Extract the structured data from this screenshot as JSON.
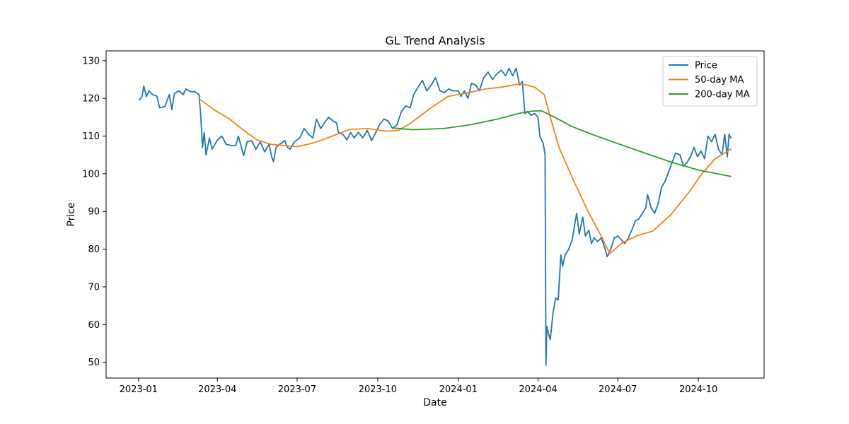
{
  "chart_data": {
    "type": "line",
    "title": "GL Trend Analysis",
    "xlabel": "Date",
    "ylabel": "Price",
    "xlim": [
      "2022-11-25",
      "2024-12-15"
    ],
    "ylim": [
      45.8,
      132.6
    ],
    "x_ticks": [
      "2023-01-01",
      "2023-04-01",
      "2023-07-01",
      "2023-10-01",
      "2024-01-01",
      "2024-04-01",
      "2024-07-01",
      "2024-10-01"
    ],
    "x_tick_labels": [
      "2023-01",
      "2023-04",
      "2023-07",
      "2023-10",
      "2024-01",
      "2024-04",
      "2024-07",
      "2024-10"
    ],
    "y_ticks": [
      50,
      60,
      70,
      80,
      90,
      100,
      110,
      120,
      130
    ],
    "grid": false,
    "legend": "top-right",
    "series": [
      {
        "name": "Price",
        "color": "#1f77b4",
        "points": [
          [
            "2023-01-02",
            119.6
          ],
          [
            "2023-01-05",
            120.5
          ],
          [
            "2023-01-07",
            123.3
          ],
          [
            "2023-01-10",
            120.5
          ],
          [
            "2023-01-13",
            122.0
          ],
          [
            "2023-01-17",
            121.0
          ],
          [
            "2023-01-22",
            120.6
          ],
          [
            "2023-01-25",
            117.5
          ],
          [
            "2023-01-31",
            117.8
          ],
          [
            "2023-02-05",
            121.0
          ],
          [
            "2023-02-08",
            117.0
          ],
          [
            "2023-02-11",
            121.3
          ],
          [
            "2023-02-16",
            122.0
          ],
          [
            "2023-02-21",
            121.0
          ],
          [
            "2023-02-24",
            122.5
          ],
          [
            "2023-03-01",
            121.8
          ],
          [
            "2023-03-06",
            121.8
          ],
          [
            "2023-03-11",
            121.0
          ],
          [
            "2023-03-13",
            115.5
          ],
          [
            "2023-03-15",
            107.0
          ],
          [
            "2023-03-17",
            111.0
          ],
          [
            "2023-03-19",
            105.0
          ],
          [
            "2023-03-23",
            109.5
          ],
          [
            "2023-03-26",
            106.5
          ],
          [
            "2023-04-01",
            109.0
          ],
          [
            "2023-04-06",
            110.0
          ],
          [
            "2023-04-11",
            107.8
          ],
          [
            "2023-04-17",
            107.5
          ],
          [
            "2023-04-22",
            107.5
          ],
          [
            "2023-04-25",
            110.0
          ],
          [
            "2023-04-29",
            106.5
          ],
          [
            "2023-05-01",
            104.8
          ],
          [
            "2023-05-05",
            108.5
          ],
          [
            "2023-05-10",
            108.8
          ],
          [
            "2023-05-15",
            106.5
          ],
          [
            "2023-05-20",
            108.5
          ],
          [
            "2023-05-25",
            105.8
          ],
          [
            "2023-05-30",
            107.8
          ],
          [
            "2023-06-02",
            104.5
          ],
          [
            "2023-06-04",
            103.2
          ],
          [
            "2023-06-07",
            107.0
          ],
          [
            "2023-06-12",
            108.0
          ],
          [
            "2023-06-17",
            108.8
          ],
          [
            "2023-06-20",
            107.0
          ],
          [
            "2023-06-23",
            106.5
          ],
          [
            "2023-06-28",
            108.5
          ],
          [
            "2023-07-04",
            109.5
          ],
          [
            "2023-07-09",
            112.0
          ],
          [
            "2023-07-14",
            110.5
          ],
          [
            "2023-07-19",
            109.5
          ],
          [
            "2023-07-23",
            114.5
          ],
          [
            "2023-07-28",
            112.0
          ],
          [
            "2023-08-01",
            113.5
          ],
          [
            "2023-08-06",
            115.0
          ],
          [
            "2023-08-11",
            114.0
          ],
          [
            "2023-08-15",
            113.5
          ],
          [
            "2023-08-17",
            111.0
          ],
          [
            "2023-08-22",
            110.5
          ],
          [
            "2023-08-27",
            109.0
          ],
          [
            "2023-08-31",
            111.0
          ],
          [
            "2023-09-04",
            109.5
          ],
          [
            "2023-09-09",
            111.0
          ],
          [
            "2023-09-14",
            109.5
          ],
          [
            "2023-09-19",
            111.5
          ],
          [
            "2023-09-24",
            108.8
          ],
          [
            "2023-09-29",
            111.0
          ],
          [
            "2023-10-03",
            113.0
          ],
          [
            "2023-10-08",
            114.5
          ],
          [
            "2023-10-13",
            114.0
          ],
          [
            "2023-10-18",
            112.0
          ],
          [
            "2023-10-23",
            113.0
          ],
          [
            "2023-10-28",
            116.5
          ],
          [
            "2023-11-02",
            118.0
          ],
          [
            "2023-11-07",
            117.5
          ],
          [
            "2023-11-11",
            121.0
          ],
          [
            "2023-11-16",
            123.0
          ],
          [
            "2023-11-21",
            124.8
          ],
          [
            "2023-11-26",
            122.0
          ],
          [
            "2023-12-01",
            123.5
          ],
          [
            "2023-12-06",
            125.5
          ],
          [
            "2023-12-11",
            122.0
          ],
          [
            "2023-12-16",
            121.5
          ],
          [
            "2023-12-21",
            122.5
          ],
          [
            "2023-12-26",
            122.0
          ],
          [
            "2024-01-01",
            122.0
          ],
          [
            "2024-01-04",
            120.5
          ],
          [
            "2024-01-08",
            122.0
          ],
          [
            "2024-01-12",
            120.0
          ],
          [
            "2024-01-16",
            124.0
          ],
          [
            "2024-01-21",
            123.5
          ],
          [
            "2024-01-25",
            122.0
          ],
          [
            "2024-01-30",
            125.5
          ],
          [
            "2024-02-04",
            127.0
          ],
          [
            "2024-02-09",
            125.0
          ],
          [
            "2024-02-14",
            126.5
          ],
          [
            "2024-02-19",
            127.5
          ],
          [
            "2024-02-24",
            126.0
          ],
          [
            "2024-02-28",
            128.0
          ],
          [
            "2024-03-03",
            126.0
          ],
          [
            "2024-03-07",
            128.0
          ],
          [
            "2024-03-11",
            123.5
          ],
          [
            "2024-03-14",
            124.5
          ],
          [
            "2024-03-17",
            116.0
          ],
          [
            "2024-03-20",
            116.5
          ],
          [
            "2024-03-24",
            115.5
          ],
          [
            "2024-03-28",
            116.0
          ],
          [
            "2024-04-01",
            115.0
          ],
          [
            "2024-04-03",
            110.0
          ],
          [
            "2024-04-07",
            108.0
          ],
          [
            "2024-04-09",
            105.0
          ],
          [
            "2024-04-10",
            49.2
          ],
          [
            "2024-04-11",
            59.5
          ],
          [
            "2024-04-13",
            57.5
          ],
          [
            "2024-04-15",
            56.0
          ],
          [
            "2024-04-18",
            63.0
          ],
          [
            "2024-04-21",
            67.0
          ],
          [
            "2024-04-24",
            66.5
          ],
          [
            "2024-04-27",
            78.5
          ],
          [
            "2024-04-29",
            75.5
          ],
          [
            "2024-05-02",
            78.5
          ],
          [
            "2024-05-06",
            80.0
          ],
          [
            "2024-05-10",
            82.5
          ],
          [
            "2024-05-15",
            89.5
          ],
          [
            "2024-05-18",
            84.0
          ],
          [
            "2024-05-22",
            88.5
          ],
          [
            "2024-05-25",
            83.5
          ],
          [
            "2024-05-29",
            85.0
          ],
          [
            "2024-06-01",
            81.5
          ],
          [
            "2024-06-04",
            83.0
          ],
          [
            "2024-06-08",
            82.0
          ],
          [
            "2024-06-12",
            83.0
          ],
          [
            "2024-06-16",
            80.5
          ],
          [
            "2024-06-19",
            78.0
          ],
          [
            "2024-06-23",
            80.0
          ],
          [
            "2024-06-27",
            83.0
          ],
          [
            "2024-07-01",
            83.5
          ],
          [
            "2024-07-05",
            82.5
          ],
          [
            "2024-07-09",
            81.5
          ],
          [
            "2024-07-13",
            83.0
          ],
          [
            "2024-07-17",
            85.0
          ],
          [
            "2024-07-21",
            87.5
          ],
          [
            "2024-07-25",
            88.0
          ],
          [
            "2024-07-29",
            89.5
          ],
          [
            "2024-08-02",
            91.0
          ],
          [
            "2024-08-04",
            94.5
          ],
          [
            "2024-08-08",
            91.0
          ],
          [
            "2024-08-12",
            89.5
          ],
          [
            "2024-08-16",
            92.0
          ],
          [
            "2024-08-20",
            96.5
          ],
          [
            "2024-08-24",
            98.0
          ],
          [
            "2024-08-28",
            100.5
          ],
          [
            "2024-09-01",
            103.0
          ],
          [
            "2024-09-05",
            105.5
          ],
          [
            "2024-09-10",
            105.0
          ],
          [
            "2024-09-14",
            102.0
          ],
          [
            "2024-09-18",
            103.0
          ],
          [
            "2024-09-22",
            104.5
          ],
          [
            "2024-09-26",
            107.0
          ],
          [
            "2024-09-30",
            104.5
          ],
          [
            "2024-10-04",
            106.0
          ],
          [
            "2024-10-08",
            104.0
          ],
          [
            "2024-10-12",
            110.0
          ],
          [
            "2024-10-16",
            108.5
          ],
          [
            "2024-10-20",
            110.5
          ],
          [
            "2024-10-24",
            106.5
          ],
          [
            "2024-10-28",
            105.0
          ],
          [
            "2024-10-31",
            110.5
          ],
          [
            "2024-11-03",
            104.5
          ],
          [
            "2024-11-05",
            110.5
          ],
          [
            "2024-11-07",
            109.5
          ]
        ]
      },
      {
        "name": "50-day MA",
        "color": "#ff7f0e",
        "points": [
          [
            "2023-03-13",
            119.6
          ],
          [
            "2023-03-28",
            117.0
          ],
          [
            "2023-04-15",
            114.5
          ],
          [
            "2023-05-01",
            111.5
          ],
          [
            "2023-05-16",
            109.0
          ],
          [
            "2023-06-01",
            107.8
          ],
          [
            "2023-07-01",
            107.2
          ],
          [
            "2023-07-20",
            108.2
          ],
          [
            "2023-08-10",
            110.0
          ],
          [
            "2023-08-31",
            111.8
          ],
          [
            "2023-09-20",
            112.0
          ],
          [
            "2023-10-10",
            111.3
          ],
          [
            "2023-10-25",
            111.5
          ],
          [
            "2023-11-08",
            113.5
          ],
          [
            "2023-12-01",
            117.5
          ],
          [
            "2023-12-20",
            120.5
          ],
          [
            "2024-01-12",
            121.5
          ],
          [
            "2024-02-01",
            122.5
          ],
          [
            "2024-02-20",
            123.0
          ],
          [
            "2024-03-12",
            123.9
          ],
          [
            "2024-03-28",
            123.0
          ],
          [
            "2024-04-08",
            121.0
          ],
          [
            "2024-04-15",
            115.0
          ],
          [
            "2024-04-25",
            107.0
          ],
          [
            "2024-05-10",
            99.0
          ],
          [
            "2024-05-28",
            90.0
          ],
          [
            "2024-06-12",
            83.5
          ],
          [
            "2024-06-22",
            78.8
          ],
          [
            "2024-07-05",
            81.5
          ],
          [
            "2024-07-22",
            83.5
          ],
          [
            "2024-08-10",
            84.8
          ],
          [
            "2024-08-30",
            89.0
          ],
          [
            "2024-09-20",
            95.0
          ],
          [
            "2024-10-05",
            100.0
          ],
          [
            "2024-10-20",
            104.0
          ],
          [
            "2024-11-07",
            106.5
          ]
        ]
      },
      {
        "name": "200-day MA",
        "color": "#2ca02c",
        "points": [
          [
            "2023-10-20",
            112.1
          ],
          [
            "2023-11-10",
            111.7
          ],
          [
            "2023-12-15",
            112.0
          ],
          [
            "2024-01-15",
            113.0
          ],
          [
            "2024-02-15",
            114.5
          ],
          [
            "2024-03-10",
            116.0
          ],
          [
            "2024-03-25",
            116.6
          ],
          [
            "2024-04-05",
            116.7
          ],
          [
            "2024-04-20",
            115.0
          ],
          [
            "2024-05-10",
            112.5
          ],
          [
            "2024-06-01",
            110.5
          ],
          [
            "2024-07-01",
            108.0
          ],
          [
            "2024-08-01",
            105.5
          ],
          [
            "2024-09-01",
            103.0
          ],
          [
            "2024-10-01",
            101.0
          ],
          [
            "2024-11-07",
            99.3
          ]
        ]
      }
    ]
  }
}
